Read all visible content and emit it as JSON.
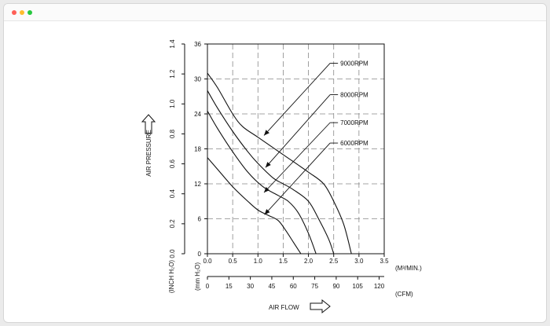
{
  "window": {
    "controls": [
      "close",
      "minimize",
      "maximize"
    ]
  },
  "chart_data": {
    "type": "line",
    "ylabel": "AIR PRESSURE",
    "xlabel": "AIR FLOW",
    "y_axes": {
      "inch": {
        "unit_label": "(INCH H₂O)",
        "ticks": [
          0.0,
          0.2,
          0.4,
          0.6,
          0.8,
          1.0,
          1.2,
          1.4
        ],
        "range": [
          0,
          1.4
        ]
      },
      "mm": {
        "unit_label": "(mm H₂O)",
        "ticks": [
          0,
          6,
          12,
          18,
          24,
          30,
          36
        ],
        "range": [
          0,
          36
        ]
      }
    },
    "x_axes": {
      "m3": {
        "unit_label": "(M³/MIN.)",
        "ticks": [
          0.0,
          0.5,
          1.0,
          1.5,
          2.0,
          2.5,
          3.0,
          3.5
        ],
        "range": [
          0,
          3.5
        ]
      },
      "cfm": {
        "unit_label": "(CFM)",
        "ticks": [
          0,
          15,
          30,
          45,
          60,
          75,
          90,
          105,
          120
        ],
        "cfm_per_m3": 35.3
      }
    },
    "grid": true,
    "series": [
      {
        "name": "9000RPM",
        "x": [
          0.0,
          0.2,
          0.5,
          0.7,
          1.0,
          1.5,
          2.0,
          2.3,
          2.5,
          2.7,
          2.85
        ],
        "y": [
          31,
          28.5,
          24,
          21.8,
          20,
          17,
          14,
          12,
          9,
          5,
          0
        ]
      },
      {
        "name": "8000RPM",
        "x": [
          0.0,
          0.2,
          0.5,
          0.8,
          1.0,
          1.3,
          1.5,
          1.7,
          2.0,
          2.2,
          2.4,
          2.5
        ],
        "y": [
          28,
          25,
          21,
          17.5,
          15.5,
          13,
          12,
          11,
          9,
          6,
          2.5,
          0
        ]
      },
      {
        "name": "7000RPM",
        "x": [
          0.0,
          0.2,
          0.5,
          0.8,
          1.1,
          1.4,
          1.6,
          1.8,
          2.0,
          2.15
        ],
        "y": [
          24.5,
          21.5,
          17.5,
          14,
          11.5,
          10,
          9,
          7,
          3.5,
          0
        ]
      },
      {
        "name": "6000RPM",
        "x": [
          0.0,
          0.2,
          0.5,
          0.8,
          1.0,
          1.2,
          1.4,
          1.55,
          1.7,
          1.85
        ],
        "y": [
          16.5,
          14.5,
          11.5,
          9,
          7.5,
          6.6,
          5.7,
          4,
          2,
          0
        ]
      }
    ],
    "annotations": [
      {
        "text": "9000RPM",
        "label_at": [
          2.6,
          32.7
        ],
        "arrow_to": [
          1.12,
          20.3
        ]
      },
      {
        "text": "8000RPM",
        "label_at": [
          2.6,
          27.3
        ],
        "arrow_to": [
          1.15,
          14.8
        ]
      },
      {
        "text": "7000RPM",
        "label_at": [
          2.6,
          22.5
        ],
        "arrow_to": [
          1.12,
          10.5
        ]
      },
      {
        "text": "6000RPM",
        "label_at": [
          2.6,
          19.0
        ],
        "arrow_to": [
          1.13,
          6.7
        ]
      }
    ]
  }
}
